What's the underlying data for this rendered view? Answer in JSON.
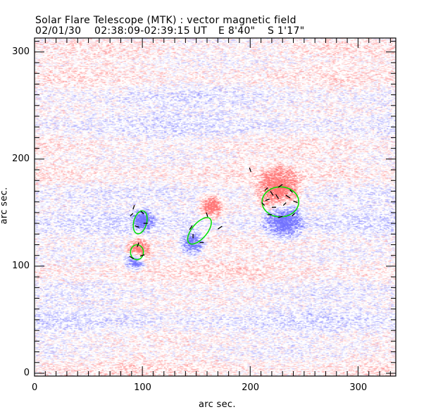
{
  "header": {
    "title": "Solar Flare Telescope (MTK) : vector magnetic field",
    "subtitle_date": "02/01/30",
    "subtitle_time": "02:38:09-02:39:15 UT",
    "subtitle_ew": "E 8'40\"",
    "subtitle_ns": "S 1'17\""
  },
  "colors": {
    "positive": "#ff8c8c",
    "negative": "#8c8cff",
    "contour": "#00e000",
    "vector": "#000000"
  },
  "chart_data": {
    "type": "heatmap",
    "title": "Solar Flare Telescope (MTK) : vector magnetic field",
    "xlabel": "arc sec.",
    "ylabel": "arc sec.",
    "xlim": [
      0,
      335
    ],
    "ylim": [
      0,
      313
    ],
    "xticks": [
      "0",
      "100",
      "200",
      "300"
    ],
    "yticks": [
      "0",
      "100",
      "200",
      "300"
    ],
    "xtick_values": [
      0,
      100,
      200,
      300
    ],
    "ytick_values": [
      0,
      100,
      200,
      300
    ],
    "minor_tick_step": 10,
    "polarity_regions": [
      {
        "polarity": "positive",
        "x": 225,
        "y": 172,
        "r": 16
      },
      {
        "polarity": "negative",
        "x": 230,
        "y": 143,
        "r": 14
      },
      {
        "polarity": "positive",
        "x": 96,
        "y": 115,
        "r": 9
      },
      {
        "polarity": "negative",
        "x": 100,
        "y": 143,
        "r": 8
      },
      {
        "polarity": "negative",
        "x": 92,
        "y": 105,
        "r": 7
      },
      {
        "polarity": "positive",
        "x": 163,
        "y": 156,
        "r": 9
      },
      {
        "polarity": "negative",
        "x": 145,
        "y": 122,
        "r": 9
      }
    ],
    "contours": [
      {
        "x": 228,
        "y": 160,
        "rx": 17,
        "ry": 14,
        "angle": 0
      },
      {
        "x": 98,
        "y": 141,
        "rx": 6,
        "ry": 11,
        "angle": 15
      },
      {
        "x": 95,
        "y": 113,
        "rx": 6,
        "ry": 7,
        "angle": 0
      },
      {
        "x": 153,
        "y": 133,
        "rx": 7,
        "ry": 15,
        "angle": 40
      }
    ],
    "vectors": [
      [
        200,
        190,
        -1,
        3
      ],
      [
        215,
        172,
        2,
        2
      ],
      [
        220,
        168,
        -2,
        3
      ],
      [
        228,
        175,
        3,
        2
      ],
      [
        238,
        170,
        -2,
        2
      ],
      [
        212,
        158,
        2,
        -2
      ],
      [
        222,
        155,
        3,
        0
      ],
      [
        232,
        158,
        -2,
        -2
      ],
      [
        242,
        160,
        3,
        -1
      ],
      [
        218,
        148,
        -3,
        0
      ],
      [
        228,
        146,
        3,
        1
      ],
      [
        240,
        148,
        -2,
        -2
      ],
      [
        225,
        165,
        2,
        -3
      ],
      [
        235,
        165,
        3,
        -2
      ],
      [
        216,
        162,
        -3,
        -1
      ],
      [
        90,
        148,
        -2,
        -2
      ],
      [
        92,
        155,
        1,
        3
      ],
      [
        100,
        150,
        2,
        -2
      ],
      [
        103,
        140,
        3,
        0
      ],
      [
        95,
        137,
        -3,
        1
      ],
      [
        90,
        108,
        -3,
        2
      ],
      [
        96,
        120,
        1,
        3
      ],
      [
        100,
        110,
        3,
        1
      ],
      [
        160,
        148,
        -1,
        3
      ],
      [
        172,
        136,
        3,
        2
      ],
      [
        145,
        136,
        -2,
        -3
      ],
      [
        155,
        122,
        -3,
        0
      ],
      [
        147,
        128,
        0,
        -3
      ]
    ]
  }
}
